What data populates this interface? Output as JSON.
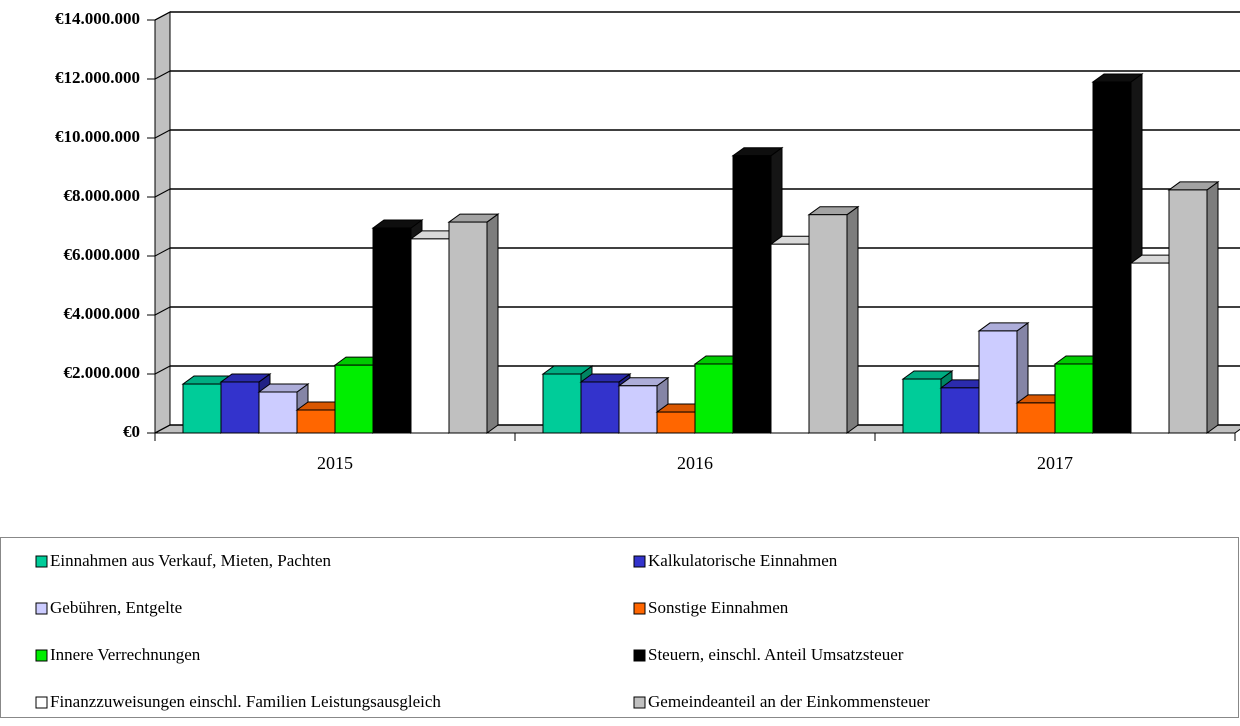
{
  "chart_data": {
    "type": "bar3d",
    "categories": [
      "2015",
      "2016",
      "2017"
    ],
    "ylim": [
      0,
      14000000
    ],
    "yticks": [
      {
        "value": 0,
        "label": "€0"
      },
      {
        "value": 2000000,
        "label": "€2.000.000"
      },
      {
        "value": 4000000,
        "label": "€4.000.000"
      },
      {
        "value": 6000000,
        "label": "€6.000.000"
      },
      {
        "value": 8000000,
        "label": "€8.000.000"
      },
      {
        "value": 10000000,
        "label": "€10.000.000"
      },
      {
        "value": 12000000,
        "label": "€12.000.000"
      },
      {
        "value": 14000000,
        "label": "€14.000.000"
      }
    ],
    "grid": true,
    "legend": "bottom",
    "series": [
      {
        "name": "Einnahmen aus Verkauf, Mieten, Pachten",
        "color": "#00cc99",
        "values": [
          1660000,
          2000000,
          1830000
        ]
      },
      {
        "name": "Kalkulatorische Einnahmen",
        "color": "#3333cc",
        "values": [
          1730000,
          1730000,
          1530000
        ]
      },
      {
        "name": "Gebühren, Entgelte",
        "color": "#ccccff",
        "values": [
          1390000,
          1600000,
          3460000
        ]
      },
      {
        "name": "Sonstige Einnahmen",
        "color": "#ff6600",
        "values": [
          780000,
          710000,
          1020000
        ]
      },
      {
        "name": "Innere Verrechnungen",
        "color": "#00ee00",
        "values": [
          2300000,
          2340000,
          2340000
        ]
      },
      {
        "name": "Steuern, einschl. Anteil Umsatzsteuer",
        "color": "#000000",
        "values": [
          6950000,
          9400000,
          11900000
        ]
      },
      {
        "name": "Finanzzuweisungen einschl. Familien Leistungsausgleich",
        "color": "#ffffff",
        "values": [
          6580000,
          6400000,
          5760000
        ]
      },
      {
        "name": "Gemeindeanteil an der Einkommensteuer",
        "color": "#c0c0c0",
        "values": [
          7150000,
          7400000,
          8240000
        ]
      }
    ]
  }
}
